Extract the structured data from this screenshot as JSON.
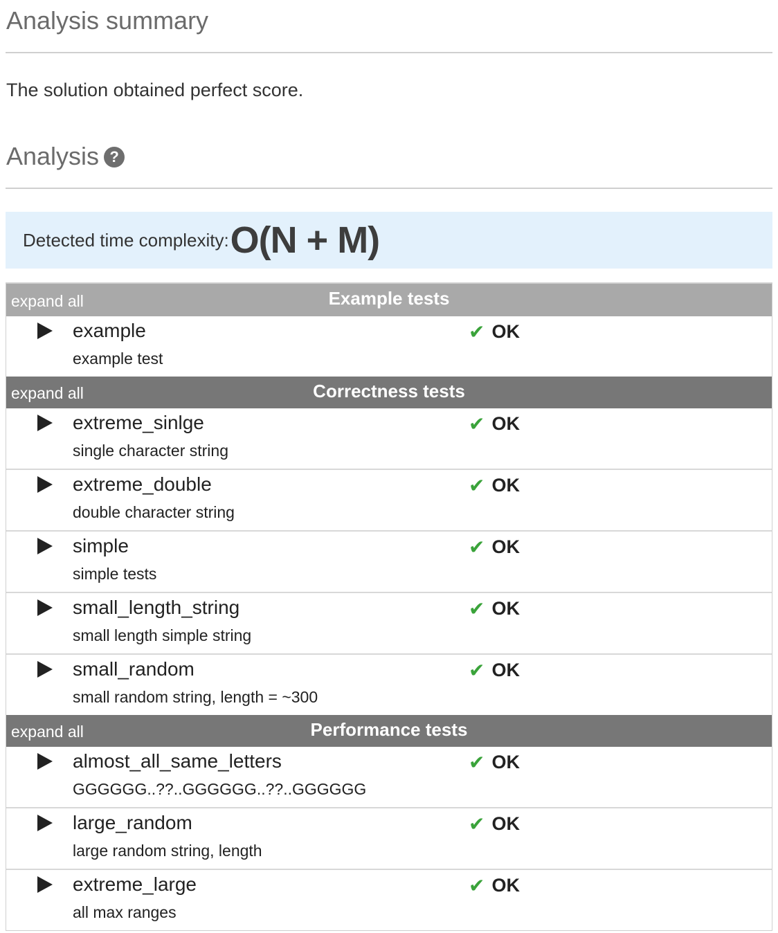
{
  "summary": {
    "heading": "Analysis summary",
    "text": "The solution obtained perfect score."
  },
  "analysis": {
    "heading": "Analysis",
    "help_icon_glyph": "?"
  },
  "complexity": {
    "label": "Detected time complexity:",
    "value": "O(N + M)"
  },
  "check_glyph": "✔",
  "groups": [
    {
      "title": "Example tests",
      "expand_label": "expand all",
      "tests": [
        {
          "name": "example",
          "desc": "example test",
          "result": "OK"
        }
      ]
    },
    {
      "title": "Correctness tests",
      "expand_label": "expand all",
      "tests": [
        {
          "name": "extreme_sinlge",
          "desc": "single character string",
          "result": "OK"
        },
        {
          "name": "extreme_double",
          "desc": "double character string",
          "result": "OK"
        },
        {
          "name": "simple",
          "desc": "simple tests",
          "result": "OK"
        },
        {
          "name": "small_length_string",
          "desc": "small length simple string",
          "result": "OK"
        },
        {
          "name": "small_random",
          "desc": "small random string, length = ~300",
          "result": "OK"
        }
      ]
    },
    {
      "title": "Performance tests",
      "expand_label": "expand all",
      "tests": [
        {
          "name": "almost_all_same_letters",
          "desc": "GGGGGG..??..GGGGGG..??..GGGGGG",
          "result": "OK"
        },
        {
          "name": "large_random",
          "desc": "large random string, length",
          "result": "OK"
        },
        {
          "name": "extreme_large",
          "desc": "all max ranges",
          "result": "OK"
        }
      ]
    }
  ],
  "colors": {
    "header_light": "#a9a9a9",
    "header_dark": "#777777",
    "complexity_bg": "#e3f1fc",
    "check": "#3aa33a"
  }
}
